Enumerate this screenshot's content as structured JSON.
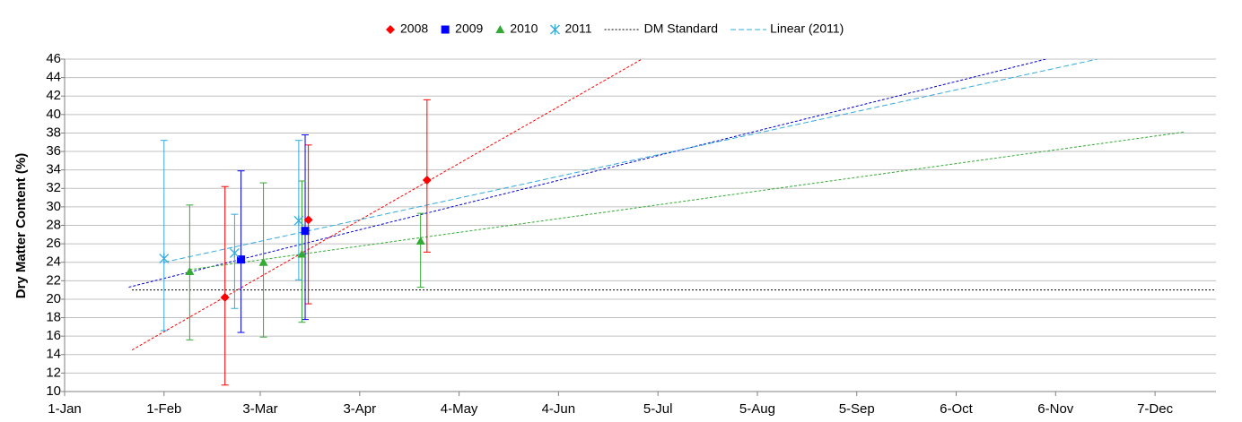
{
  "chart_data": {
    "type": "scatter",
    "y_label": "Dry Matter Content (%)",
    "xlim": [
      1,
      360
    ],
    "ylim": [
      10,
      46
    ],
    "xticks": [
      {
        "value": 1,
        "label": "1-Jan"
      },
      {
        "value": 32,
        "label": "1-Feb"
      },
      {
        "value": 62,
        "label": "3-Mar"
      },
      {
        "value": 93,
        "label": "3-Apr"
      },
      {
        "value": 124,
        "label": "4-May"
      },
      {
        "value": 155,
        "label": "4-Jun"
      },
      {
        "value": 186,
        "label": "5-Jul"
      },
      {
        "value": 217,
        "label": "5-Aug"
      },
      {
        "value": 248,
        "label": "5-Sep"
      },
      {
        "value": 279,
        "label": "6-Oct"
      },
      {
        "value": 310,
        "label": "6-Nov"
      },
      {
        "value": 341,
        "label": "7-Dec"
      }
    ],
    "yticks": [
      10,
      12,
      14,
      16,
      18,
      20,
      22,
      24,
      26,
      28,
      30,
      32,
      34,
      36,
      38,
      40,
      42,
      44,
      46
    ],
    "grid": true,
    "series": [
      {
        "name": "2008",
        "color": "#ff0000",
        "marker": "diamond",
        "x": [
          51,
          77,
          114
        ],
        "values": [
          20.2,
          28.6,
          32.9
        ],
        "low": [
          10.7,
          19.5,
          25.1
        ],
        "high": [
          32.2,
          36.7,
          41.6
        ]
      },
      {
        "name": "2009",
        "color": "#0000ff",
        "marker": "square",
        "x": [
          56,
          76
        ],
        "values": [
          24.3,
          27.4
        ],
        "low": [
          16.4,
          17.8
        ],
        "high": [
          33.9,
          37.8
        ]
      },
      {
        "name": "2010",
        "color": "#33aa33",
        "marker": "triangle",
        "x": [
          40,
          63,
          75,
          112
        ],
        "values": [
          23.0,
          24.0,
          24.9,
          26.3
        ],
        "low": [
          15.6,
          15.9,
          17.5,
          21.3
        ],
        "high": [
          30.2,
          32.6,
          32.8,
          29.3
        ]
      },
      {
        "name": "2011",
        "color": "#33aadd",
        "marker": "asterisk",
        "x": [
          32,
          54,
          74
        ],
        "values": [
          24.4,
          25.0,
          28.5
        ],
        "low": [
          16.6,
          19.0,
          22.1
        ],
        "high": [
          37.2,
          29.2,
          37.2
        ]
      }
    ],
    "lines": [
      {
        "color": "#ff0000",
        "dash": "3,2",
        "x": [
          22,
          181
        ],
        "values": [
          14.5,
          46
        ]
      },
      {
        "color": "#0000cc",
        "dash": "3,2",
        "x": [
          21,
          307
        ],
        "values": [
          21.3,
          46
        ]
      },
      {
        "color": "#33aa33",
        "dash": "3,2",
        "x": [
          40,
          350
        ],
        "values": [
          23.2,
          38.1
        ]
      },
      {
        "name": "DM Standard",
        "color": "#000000",
        "dash": "2,2",
        "x": [
          22,
          360
        ],
        "values": [
          21,
          21
        ]
      },
      {
        "name": "Linear (2011)",
        "color": "#33aadd",
        "dash": "6,3",
        "x": [
          32,
          323
        ],
        "values": [
          24.0,
          46
        ]
      }
    ]
  }
}
